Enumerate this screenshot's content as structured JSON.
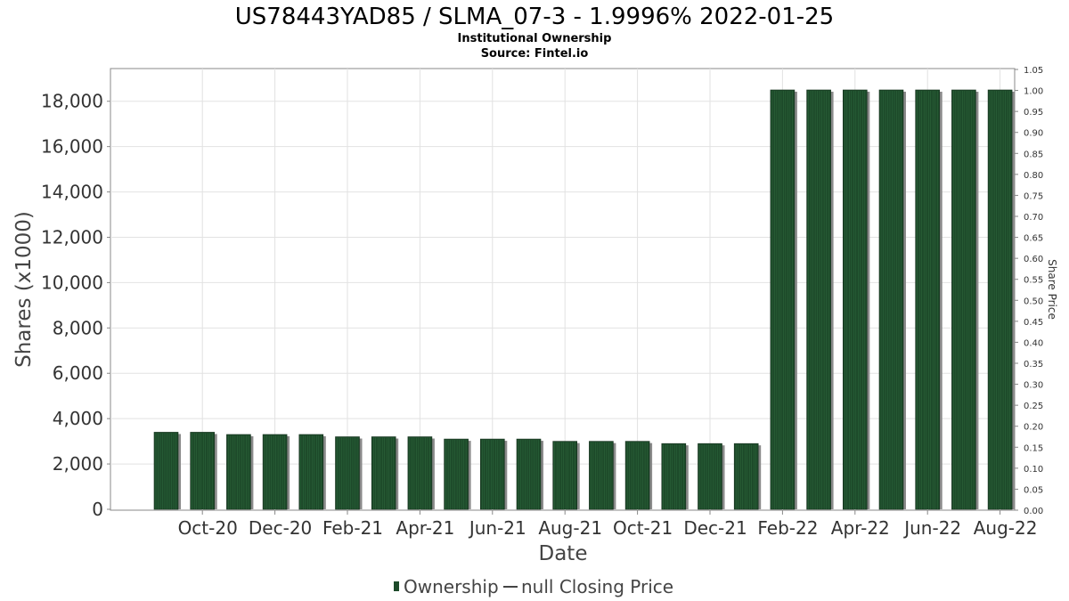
{
  "chart_data": {
    "type": "bar",
    "title": "US78443YAD85 / SLMA_07-3 - 1.9996% 2022-01-25",
    "subtitle_lines": [
      "Institutional Ownership",
      "Source: Fintel.io"
    ],
    "xlabel": "Date",
    "ylabel": "Shares (x1000)",
    "y2label": "Share Price",
    "ylim": [
      0,
      18900
    ],
    "y_ticks": [
      "0",
      "2,000",
      "4,000",
      "6,000",
      "8,000",
      "10,000",
      "12,000",
      "14,000",
      "16,000",
      "18,000"
    ],
    "y_tick_values": [
      0,
      2000,
      4000,
      6000,
      8000,
      10000,
      12000,
      14000,
      16000,
      18000
    ],
    "y2lim": [
      0,
      1.05
    ],
    "y2_ticks": [
      "0.00",
      "0.05",
      "0.10",
      "0.15",
      "0.20",
      "0.25",
      "0.30",
      "0.35",
      "0.40",
      "0.45",
      "0.50",
      "0.55",
      "0.60",
      "0.65",
      "0.70",
      "0.75",
      "0.80",
      "0.85",
      "0.90",
      "0.95",
      "1.00",
      "1.05"
    ],
    "x_tick_labels": [
      "Oct-20",
      "Dec-20",
      "Feb-21",
      "Apr-21",
      "Jun-21",
      "Aug-21",
      "Oct-21",
      "Dec-21",
      "Feb-22",
      "Apr-22",
      "Jun-22",
      "Aug-22"
    ],
    "categories": [
      "Sep-20",
      "Oct-20",
      "Nov-20",
      "Dec-20",
      "Jan-21",
      "Feb-21",
      "Mar-21",
      "Apr-21",
      "May-21",
      "Jun-21",
      "Jul-21",
      "Aug-21",
      "Sep-21",
      "Oct-21",
      "Nov-21",
      "Dec-21",
      "Jan-22",
      "Feb-22",
      "Mar-22",
      "Apr-22",
      "May-22",
      "Jun-22",
      "Jul-22",
      "Aug-22"
    ],
    "series": [
      {
        "name": "Ownership",
        "values": [
          3400,
          3400,
          3300,
          3300,
          3300,
          3200,
          3200,
          3200,
          3100,
          3100,
          3100,
          3000,
          3000,
          3000,
          2900,
          2900,
          2900,
          18500,
          18500,
          18500,
          18500,
          18500,
          18500,
          18500
        ]
      }
    ],
    "legend": {
      "placement": "bottom",
      "ownership_label": "Ownership",
      "price_label": "null Closing Price"
    },
    "grid": true,
    "colors": {
      "bar": "#1d4a2a",
      "bar_shadow": "#8a8a8a",
      "grid": "#e2e2e2",
      "axis": "#888888"
    }
  }
}
